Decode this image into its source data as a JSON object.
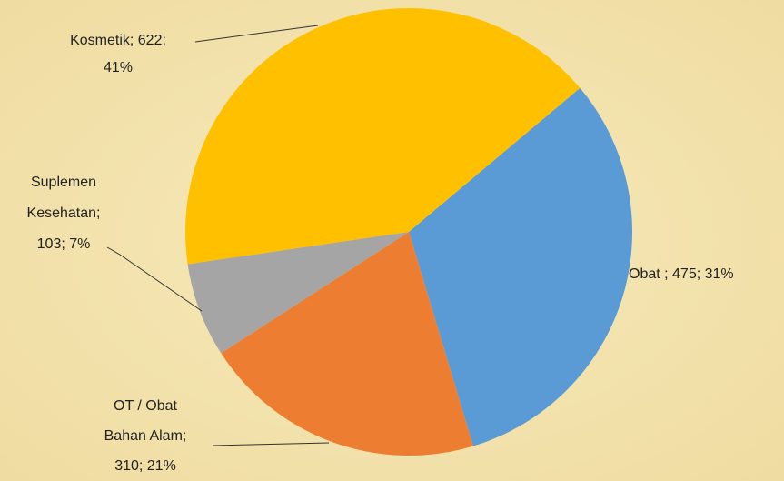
{
  "chart_data": {
    "type": "pie",
    "values": [
      475,
      310,
      103,
      622
    ],
    "value_labels": [
      [
        "Obat ; 475; 31%"
      ],
      [
        "OT / Obat",
        "Bahan Alam;",
        "310; 21%"
      ],
      [
        "Suplemen",
        "Kesehatan;",
        "103; 7%"
      ],
      [
        "Kosmetik; 622;",
        "41%"
      ]
    ],
    "colors": [
      "#5b9bd5",
      "#ed7d31",
      "#a5a5a5",
      "#ffc000"
    ]
  }
}
